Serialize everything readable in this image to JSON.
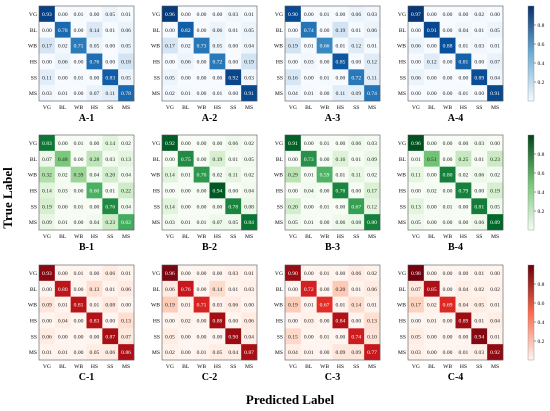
{
  "figure": {
    "ylabel": "True Label",
    "xlabel": "Predicted Label"
  },
  "colorbars": [
    {
      "row": "A",
      "scheme": "blues",
      "ticks": [
        "0.8",
        "0.6",
        "0.4",
        "0.2"
      ],
      "low": "#f7fbff",
      "high": "#08306b"
    },
    {
      "row": "B",
      "scheme": "greens",
      "ticks": [
        "0.8",
        "0.6",
        "0.4",
        "0.2"
      ],
      "low": "#f7fcf5",
      "high": "#00441b"
    },
    {
      "row": "C",
      "scheme": "reds",
      "ticks": [
        "0.8",
        "0.6",
        "0.4",
        "0.2"
      ],
      "low": "#fff5f0",
      "high": "#67000d"
    }
  ],
  "chart_data": [
    {
      "type": "heatmap",
      "title": "A-1",
      "scheme": "blues",
      "x_categories": [
        "VG",
        "BL",
        "WB",
        "HS",
        "SS",
        "MS"
      ],
      "y_categories": [
        "VG",
        "BL",
        "WB",
        "HS",
        "SS",
        "MS"
      ],
      "values": [
        [
          "0.93",
          "0.00",
          "0.01",
          "0.00",
          "0.05",
          "0.01"
        ],
        [
          "0.00",
          "0.78",
          "0.00",
          "0.14",
          "0.01",
          "0.06"
        ],
        [
          "0.17",
          "0.02",
          "0.71",
          "0.05",
          "0.00",
          "0.05"
        ],
        [
          "0.00",
          "0.06",
          "0.00",
          "0.76",
          "0.00",
          "0.18"
        ],
        [
          "0.11",
          "0.00",
          "0.01",
          "0.00",
          "0.83",
          "0.05"
        ],
        [
          "0.03",
          "0.01",
          "0.00",
          "0.07",
          "0.11",
          "0.78"
        ]
      ]
    },
    {
      "type": "heatmap",
      "title": "A-2",
      "scheme": "blues",
      "x_categories": [
        "VG",
        "BL",
        "WB",
        "HS",
        "SS",
        "MS"
      ],
      "y_categories": [
        "VG",
        "BL",
        "WB",
        "HS",
        "SS",
        "MS"
      ],
      "values": [
        [
          "0.96",
          "0.00",
          "0.00",
          "0.00",
          "0.03",
          "0.01"
        ],
        [
          "0.00",
          "0.82",
          "0.00",
          "0.06",
          "0.01",
          "0.05"
        ],
        [
          "0.17",
          "0.02",
          "0.73",
          "0.05",
          "0.00",
          "0.04"
        ],
        [
          "0.00",
          "0.06",
          "0.00",
          "0.72",
          "0.00",
          "0.19"
        ],
        [
          "0.05",
          "0.00",
          "0.00",
          "0.00",
          "0.92",
          "0.03"
        ],
        [
          "0.02",
          "0.01",
          "0.00",
          "0.01",
          "0.00",
          "0.91"
        ]
      ]
    },
    {
      "type": "heatmap",
      "title": "A-3",
      "scheme": "blues",
      "x_categories": [
        "VG",
        "BL",
        "WB",
        "HS",
        "SS",
        "MS"
      ],
      "y_categories": [
        "VG",
        "BL",
        "WB",
        "HS",
        "SS",
        "MS"
      ],
      "values": [
        [
          "0.90",
          "0.00",
          "0.01",
          "0.00",
          "0.06",
          "0.03"
        ],
        [
          "0.00",
          "0.74",
          "0.00",
          "0.19",
          "0.01",
          "0.06"
        ],
        [
          "0.19",
          "0.01",
          "0.66",
          "0.01",
          "0.12",
          "0.01"
        ],
        [
          "0.00",
          "0.03",
          "0.00",
          "0.85",
          "0.00",
          "0.12"
        ],
        [
          "0.16",
          "0.00",
          "0.01",
          "0.00",
          "0.72",
          "0.11"
        ],
        [
          "0.04",
          "0.01",
          "0.00",
          "0.11",
          "0.09",
          "0.74"
        ]
      ]
    },
    {
      "type": "heatmap",
      "title": "A-4",
      "scheme": "blues",
      "x_categories": [
        "VG",
        "BL",
        "WB",
        "HS",
        "SS",
        "MS"
      ],
      "y_categories": [
        "VG",
        "BL",
        "WB",
        "HS",
        "SS",
        "MS"
      ],
      "values": [
        [
          "0.97",
          "0.00",
          "0.00",
          "0.00",
          "0.02",
          "0.00"
        ],
        [
          "0.00",
          "0.91",
          "0.00",
          "0.04",
          "0.01",
          "0.05"
        ],
        [
          "0.06",
          "0.00",
          "0.88",
          "0.01",
          "0.03",
          "0.01"
        ],
        [
          "0.00",
          "0.12",
          "0.00",
          "0.81",
          "0.00",
          "0.07"
        ],
        [
          "0.06",
          "0.00",
          "0.00",
          "0.00",
          "0.89",
          "0.04"
        ],
        [
          "0.00",
          "0.00",
          "0.00",
          "0.01",
          "0.00",
          "0.91"
        ]
      ]
    },
    {
      "type": "heatmap",
      "title": "B-1",
      "scheme": "greens",
      "x_categories": [
        "VG",
        "BL",
        "WB",
        "HS",
        "SS",
        "MS"
      ],
      "y_categories": [
        "VG",
        "BL",
        "WB",
        "HS",
        "SS",
        "MS"
      ],
      "values": [
        [
          "0.83",
          "0.00",
          "0.01",
          "0.00",
          "0.14",
          "0.02"
        ],
        [
          "0.07",
          "0.48",
          "0.00",
          "0.28",
          "0.03",
          "0.13"
        ],
        [
          "0.32",
          "0.02",
          "0.39",
          "0.04",
          "0.20",
          "0.04"
        ],
        [
          "0.14",
          "0.03",
          "0.00",
          "0.60",
          "0.01",
          "0.22"
        ],
        [
          "0.19",
          "0.00",
          "0.01",
          "0.00",
          "0.76",
          "0.04"
        ],
        [
          "0.09",
          "0.01",
          "0.00",
          "0.04",
          "0.23",
          "0.62"
        ]
      ]
    },
    {
      "type": "heatmap",
      "title": "B-2",
      "scheme": "greens",
      "x_categories": [
        "VG",
        "BL",
        "WB",
        "HS",
        "SS",
        "MS"
      ],
      "y_categories": [
        "VG",
        "BL",
        "WB",
        "HS",
        "SS",
        "MS"
      ],
      "values": [
        [
          "0.92",
          "0.00",
          "0.00",
          "0.00",
          "0.06",
          "0.02"
        ],
        [
          "0.00",
          "0.75",
          "0.00",
          "0.19",
          "0.01",
          "0.05"
        ],
        [
          "0.14",
          "0.01",
          "0.70",
          "0.02",
          "0.11",
          "0.02"
        ],
        [
          "0.00",
          "0.00",
          "0.00",
          "0.94",
          "0.00",
          "0.04"
        ],
        [
          "0.14",
          "0.00",
          "0.00",
          "0.00",
          "0.78",
          "0.08"
        ],
        [
          "0.03",
          "0.01",
          "0.01",
          "0.07",
          "0.05",
          "0.84"
        ]
      ]
    },
    {
      "type": "heatmap",
      "title": "B-3",
      "scheme": "greens",
      "x_categories": [
        "VG",
        "BL",
        "WB",
        "HS",
        "SS",
        "MS"
      ],
      "y_categories": [
        "VG",
        "BL",
        "WB",
        "HS",
        "SS",
        "MS"
      ],
      "values": [
        [
          "0.91",
          "0.00",
          "0.01",
          "0.00",
          "0.06",
          "0.03"
        ],
        [
          "0.00",
          "0.73",
          "0.00",
          "0.16",
          "0.01",
          "0.09"
        ],
        [
          "0.29",
          "0.01",
          "0.59",
          "0.01",
          "0.11",
          "0.02"
        ],
        [
          "0.00",
          "0.04",
          "0.00",
          "0.78",
          "0.00",
          "0.17"
        ],
        [
          "0.20",
          "0.00",
          "0.01",
          "0.00",
          "0.67",
          "0.12"
        ],
        [
          "0.05",
          "0.01",
          "0.00",
          "0.06",
          "0.08",
          "0.80"
        ]
      ]
    },
    {
      "type": "heatmap",
      "title": "B-4",
      "scheme": "greens",
      "x_categories": [
        "VG",
        "BL",
        "WB",
        "HS",
        "SS",
        "MS"
      ],
      "y_categories": [
        "VG",
        "BL",
        "WB",
        "HS",
        "SS",
        "MS"
      ],
      "values": [
        [
          "0.96",
          "0.00",
          "0.00",
          "0.00",
          "0.03",
          "0.00"
        ],
        [
          "0.01",
          "0.51",
          "0.00",
          "0.25",
          "0.01",
          "0.23"
        ],
        [
          "0.11",
          "0.00",
          "0.80",
          "0.02",
          "0.06",
          "0.02"
        ],
        [
          "0.00",
          "0.02",
          "0.00",
          "0.79",
          "0.00",
          "0.19"
        ],
        [
          "0.13",
          "0.00",
          "0.01",
          "0.00",
          "0.81",
          "0.05"
        ],
        [
          "0.05",
          "0.00",
          "0.00",
          "0.00",
          "0.06",
          "0.89"
        ]
      ]
    },
    {
      "type": "heatmap",
      "title": "C-1",
      "scheme": "reds",
      "x_categories": [
        "VG",
        "BL",
        "WB",
        "HS",
        "SS",
        "MS"
      ],
      "y_categories": [
        "VG",
        "BL",
        "WB",
        "HS",
        "SS",
        "MS"
      ],
      "values": [
        [
          "0.93",
          "0.00",
          "0.01",
          "0.00",
          "0.06",
          "0.01"
        ],
        [
          "0.00",
          "0.80",
          "0.00",
          "0.13",
          "0.01",
          "0.06"
        ],
        [
          "0.09",
          "0.01",
          "0.81",
          "0.01",
          "0.08",
          "0.00"
        ],
        [
          "0.00",
          "0.04",
          "0.00",
          "0.83",
          "0.00",
          "0.13"
        ],
        [
          "0.06",
          "0.00",
          "0.00",
          "0.00",
          "0.87",
          "0.07"
        ],
        [
          "0.01",
          "0.01",
          "0.00",
          "0.05",
          "0.06",
          "0.86"
        ]
      ]
    },
    {
      "type": "heatmap",
      "title": "C-2",
      "scheme": "reds",
      "x_categories": [
        "VG",
        "BL",
        "WB",
        "HS",
        "SS",
        "MS"
      ],
      "y_categories": [
        "VG",
        "BL",
        "WB",
        "HS",
        "SS",
        "MS"
      ],
      "values": [
        [
          "0.96",
          "0.00",
          "0.00",
          "0.00",
          "0.03",
          "0.01"
        ],
        [
          "0.06",
          "0.76",
          "0.00",
          "0.14",
          "0.01",
          "0.03"
        ],
        [
          "0.19",
          "0.01",
          "0.71",
          "0.03",
          "0.06",
          "0.00"
        ],
        [
          "0.00",
          "0.02",
          "0.00",
          "0.88",
          "0.00",
          "0.06"
        ],
        [
          "0.05",
          "0.00",
          "0.00",
          "0.00",
          "0.90",
          "0.04"
        ],
        [
          "0.02",
          "0.00",
          "0.01",
          "0.05",
          "0.04",
          "0.87"
        ]
      ]
    },
    {
      "type": "heatmap",
      "title": "C-3",
      "scheme": "reds",
      "x_categories": [
        "VG",
        "BL",
        "WB",
        "HS",
        "SS",
        "MS"
      ],
      "y_categories": [
        "VG",
        "BL",
        "WB",
        "HS",
        "SS",
        "MS"
      ],
      "values": [
        [
          "0.90",
          "0.00",
          "0.01",
          "0.00",
          "0.06",
          "0.02"
        ],
        [
          "0.00",
          "0.72",
          "0.00",
          "0.20",
          "0.01",
          "0.06"
        ],
        [
          "0.19",
          "0.01",
          "0.67",
          "0.01",
          "0.14",
          "0.01"
        ],
        [
          "0.00",
          "0.03",
          "0.00",
          "0.84",
          "0.00",
          "0.13"
        ],
        [
          "0.15",
          "0.00",
          "0.01",
          "0.00",
          "0.74",
          "0.10"
        ],
        [
          "0.04",
          "0.01",
          "0.00",
          "0.09",
          "0.09",
          "0.77"
        ]
      ]
    },
    {
      "type": "heatmap",
      "title": "C-4",
      "scheme": "reds",
      "x_categories": [
        "VG",
        "BL",
        "WB",
        "HS",
        "SS",
        "MS"
      ],
      "y_categories": [
        "VG",
        "BL",
        "WB",
        "HS",
        "SS",
        "MS"
      ],
      "values": [
        [
          "0.98",
          "0.00",
          "0.00",
          "0.00",
          "0.01",
          "0.00"
        ],
        [
          "0.07",
          "0.85",
          "0.00",
          "0.04",
          "0.02",
          "0.02"
        ],
        [
          "0.17",
          "0.02",
          "0.69",
          "0.04",
          "0.05",
          "0.01"
        ],
        [
          "0.00",
          "0.01",
          "0.00",
          "0.89",
          "0.01",
          "0.04"
        ],
        [
          "0.05",
          "0.00",
          "0.00",
          "0.00",
          "0.94",
          "0.01"
        ],
        [
          "0.03",
          "0.00",
          "0.00",
          "0.01",
          "0.03",
          "0.92"
        ]
      ]
    }
  ]
}
